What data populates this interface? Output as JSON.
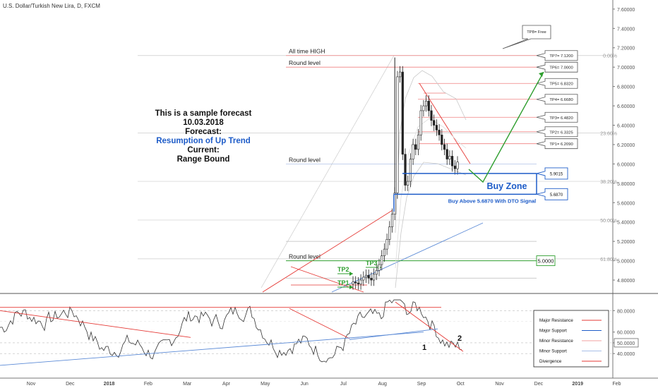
{
  "header": {
    "title": "U.S. Dollar/Turkish New Lira, D, FXCM"
  },
  "forecast": {
    "line1": "This is a sample forecast",
    "line2": "10.03.2018",
    "line3": "Forecast:",
    "line4": "Resumption of Up Trend",
    "line5": "Current:",
    "line6": "Range Bound"
  },
  "colors": {
    "up_bar": "#333333",
    "resistance": "#e53935",
    "support": "#1e5cc8",
    "target": "#2e9e2e",
    "zone": "#1e5cc8"
  },
  "chart_data": [
    {
      "type": "candlestick",
      "title": "U.S. Dollar/Turkish New Lira, D, FXCM",
      "y_axis_ticks": [
        "7.60000",
        "7.40000",
        "7.20000",
        "7.00000",
        "6.80000",
        "6.60000",
        "6.40000",
        "6.20000",
        "6.00000",
        "5.80000",
        "5.60000",
        "5.40000",
        "5.20000",
        "5.00000",
        "4.80000"
      ],
      "ylim": [
        4.72,
        7.65
      ],
      "x_axis_ticks": [
        "Nov",
        "Dec",
        "2018",
        "Feb",
        "Mar",
        "Apr",
        "May",
        "Jun",
        "Jul",
        "Aug",
        "Sep",
        "Oct",
        "Nov",
        "Dec",
        "2019",
        "Feb"
      ],
      "fib_levels": [
        {
          "label": "0.00%",
          "price": 7.12
        },
        {
          "label": "23.60%",
          "price": 6.32
        },
        {
          "label": "38.20%",
          "price": 5.82
        },
        {
          "label": "50.00%",
          "price": 5.42
        },
        {
          "label": "61.80%",
          "price": 5.02
        }
      ],
      "level_labels": [
        {
          "label": "All time HIGH",
          "price": 7.12
        },
        {
          "label": "Round level",
          "price": 7.0
        },
        {
          "label": "Round level",
          "price": 6.0
        },
        {
          "label": "Round level",
          "price": 5.0
        }
      ],
      "targets": [
        {
          "label": "TP8= Free"
        },
        {
          "label": "TP7= 7.1200",
          "price": 7.12
        },
        {
          "label": "TP6= 7.0000",
          "price": 7.0
        },
        {
          "label": "TP5= 6.8320",
          "price": 6.832
        },
        {
          "label": "TP4= 6.6680",
          "price": 6.668
        },
        {
          "label": "TP3= 6.4820",
          "price": 6.482
        },
        {
          "label": "TP2= 6.3325",
          "price": 6.3325
        },
        {
          "label": "TP1= 6.2090",
          "price": 6.209
        }
      ],
      "buy_zone": {
        "label": "Buy Zone",
        "upper": 5.9015,
        "upper_label": "5.9015",
        "lower": 5.687,
        "lower_label": "5.6870",
        "signal": "Buy Above 5.6870 With DTO Signal"
      },
      "round_marker": {
        "label": "5.0000",
        "price": 5.0
      },
      "old_targets": [
        "TP1",
        "TP2",
        "TP3"
      ],
      "candles_close": [
        4.78,
        4.77,
        4.76,
        4.8,
        4.83,
        4.85,
        4.82,
        4.8,
        4.86,
        4.9,
        4.96,
        5.05,
        5.12,
        5.22,
        5.35,
        5.48,
        5.7,
        6.9,
        6.95,
        6.1,
        5.78,
        5.82,
        6.05,
        6.2,
        6.15,
        6.3,
        6.55,
        6.6,
        6.65,
        6.55,
        6.45,
        6.4,
        6.35,
        6.3,
        6.2,
        6.15,
        6.05,
        6.08,
        5.98,
        5.95,
        6.02
      ]
    },
    {
      "type": "line",
      "title": "",
      "y_axis_ticks": [
        "80.0000",
        "60.0000",
        "50.0000",
        "40.0000"
      ],
      "ylim": [
        25,
        92
      ],
      "annotations": [
        "1",
        "2"
      ],
      "legend": [
        {
          "name": "Major Resistance",
          "color": "#e53935"
        },
        {
          "name": "Major Support",
          "color": "#1e5cc8"
        },
        {
          "name": "Minor Resistance",
          "color": "#f0a0a0"
        },
        {
          "name": "Minor Support",
          "color": "#a8bfe8"
        },
        {
          "name": "Divergence",
          "color": "#e53935"
        }
      ]
    }
  ]
}
